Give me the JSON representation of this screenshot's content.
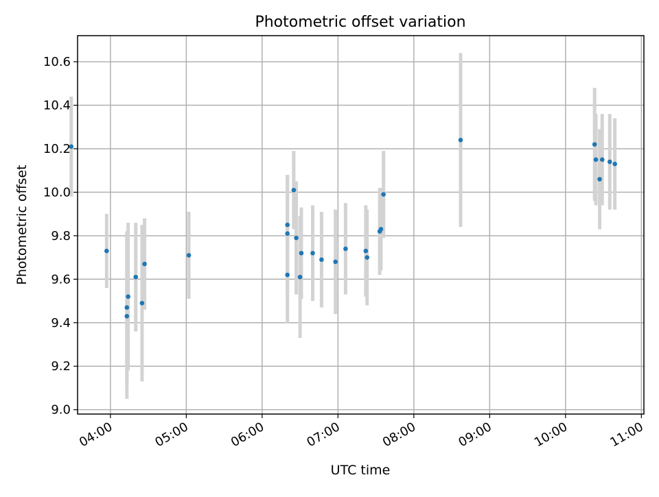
{
  "chart_data": {
    "type": "scatter",
    "title": "Photometric offset variation",
    "xlabel": "UTC time",
    "ylabel": "Photometric offset",
    "xlim": [
      "03:34",
      "11:02"
    ],
    "ylim": [
      8.98,
      10.72
    ],
    "x_ticks": [
      "04:00",
      "05:00",
      "06:00",
      "07:00",
      "08:00",
      "09:00",
      "10:00",
      "11:00"
    ],
    "y_ticks": [
      "9.0",
      "9.2",
      "9.4",
      "9.6",
      "9.8",
      "10.0",
      "10.2",
      "10.4",
      "10.6"
    ],
    "grid": true,
    "colors": {
      "marker": "#1f77b4",
      "errorbar": "#d3d3d3"
    },
    "series": [
      {
        "points": [
          {
            "time": "03:29",
            "y": 10.21,
            "err": 0.23
          },
          {
            "time": "03:57",
            "y": 9.73,
            "err": 0.17
          },
          {
            "time": "04:13",
            "y": 9.43,
            "err": 0.38
          },
          {
            "time": "04:13",
            "y": 9.47,
            "err": 0.35
          },
          {
            "time": "04:14",
            "y": 9.52,
            "err": 0.34
          },
          {
            "time": "04:20",
            "y": 9.61,
            "err": 0.25
          },
          {
            "time": "04:25",
            "y": 9.49,
            "err": 0.36
          },
          {
            "time": "04:27",
            "y": 9.67,
            "err": 0.21
          },
          {
            "time": "05:02",
            "y": 9.71,
            "err": 0.2
          },
          {
            "time": "06:20",
            "y": 9.62,
            "err": 0.22
          },
          {
            "time": "06:20",
            "y": 9.81,
            "err": 0.27
          },
          {
            "time": "06:20",
            "y": 9.85,
            "err": 0.23
          },
          {
            "time": "06:25",
            "y": 10.01,
            "err": 0.18
          },
          {
            "time": "06:27",
            "y": 9.79,
            "err": 0.26
          },
          {
            "time": "06:30",
            "y": 9.61,
            "err": 0.28
          },
          {
            "time": "06:31",
            "y": 9.72,
            "err": 0.21
          },
          {
            "time": "06:40",
            "y": 9.72,
            "err": 0.22
          },
          {
            "time": "06:47",
            "y": 9.69,
            "err": 0.22
          },
          {
            "time": "06:58",
            "y": 9.68,
            "err": 0.24
          },
          {
            "time": "07:06",
            "y": 9.74,
            "err": 0.21
          },
          {
            "time": "07:22",
            "y": 9.73,
            "err": 0.21
          },
          {
            "time": "07:23",
            "y": 9.7,
            "err": 0.22
          },
          {
            "time": "07:33",
            "y": 9.82,
            "err": 0.2
          },
          {
            "time": "07:34",
            "y": 9.83,
            "err": 0.19
          },
          {
            "time": "07:36",
            "y": 9.99,
            "err": 0.2
          },
          {
            "time": "08:37",
            "y": 10.24,
            "err": 0.4
          },
          {
            "time": "10:23",
            "y": 10.22,
            "err": 0.26
          },
          {
            "time": "10:24",
            "y": 10.15,
            "err": 0.21
          },
          {
            "time": "10:27",
            "y": 10.06,
            "err": 0.23
          },
          {
            "time": "10:29",
            "y": 10.15,
            "err": 0.21
          },
          {
            "time": "10:35",
            "y": 10.14,
            "err": 0.22
          },
          {
            "time": "10:39",
            "y": 10.13,
            "err": 0.21
          }
        ]
      }
    ]
  }
}
